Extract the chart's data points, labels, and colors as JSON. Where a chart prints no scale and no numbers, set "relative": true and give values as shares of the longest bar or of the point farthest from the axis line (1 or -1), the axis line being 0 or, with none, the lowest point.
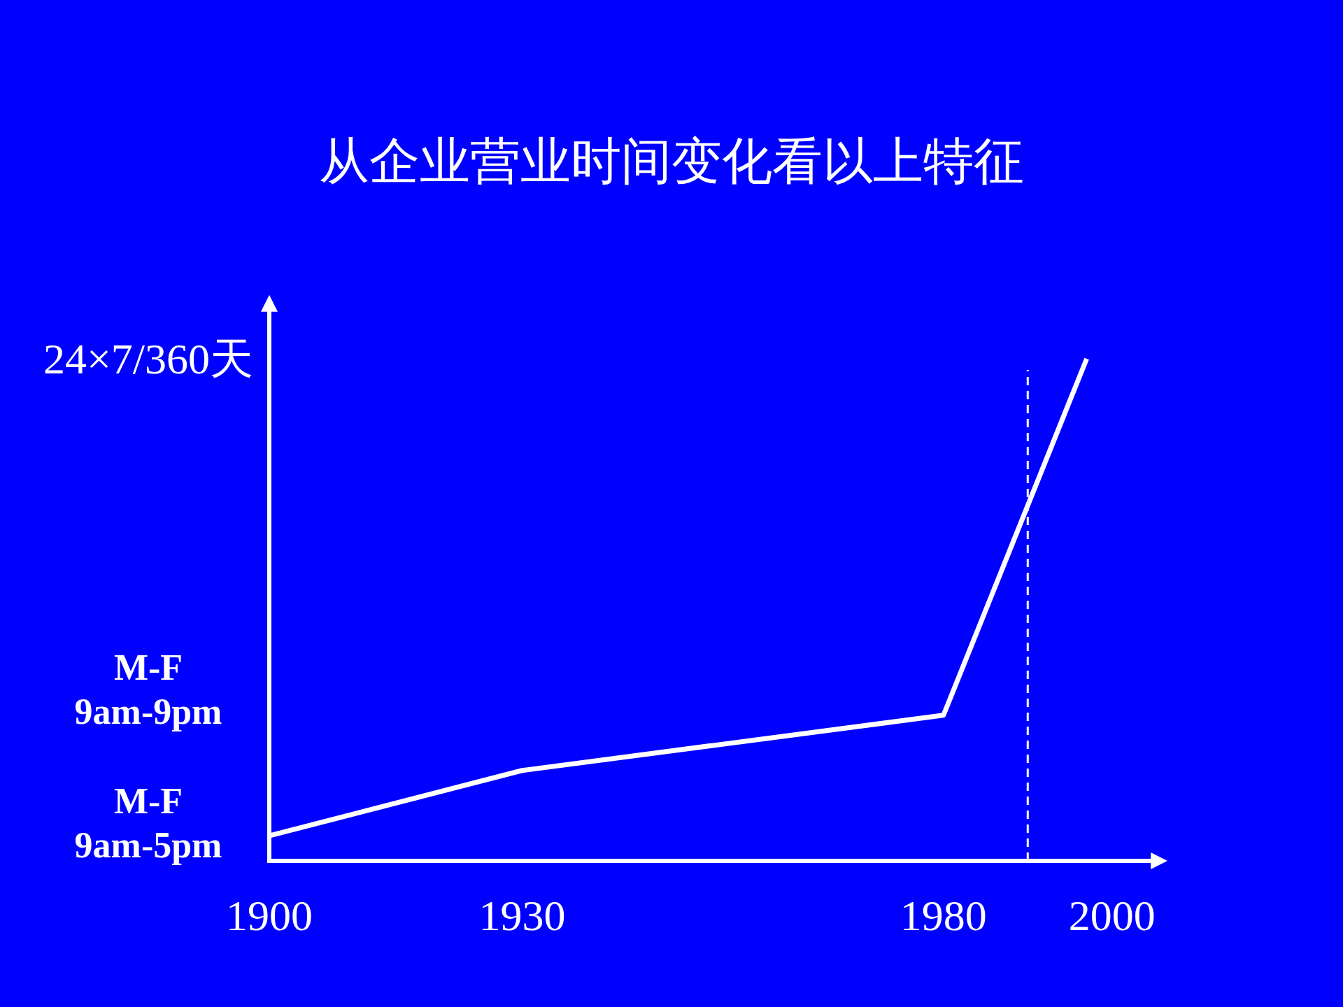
{
  "chart_data": {
    "type": "line",
    "title": "从企业营业时间变化看以上特征",
    "x": [
      1900,
      1930,
      1980,
      1997
    ],
    "series": [
      {
        "color": "#ffffff",
        "values": [
          0.05,
          0.18,
          0.29,
          1
        ]
      }
    ],
    "relative": true,
    "xlim": [
      1900,
      2005
    ],
    "xticks": [
      1900,
      1930,
      1980,
      2000
    ],
    "annotations": [
      "24×7/360天",
      "M-F\n9am-9pm",
      "M-F\n9am-5pm"
    ],
    "ref_lines": [
      {
        "axis": "x",
        "value": 1990,
        "color": "#ffffff",
        "line_style": "dashed"
      }
    ]
  }
}
